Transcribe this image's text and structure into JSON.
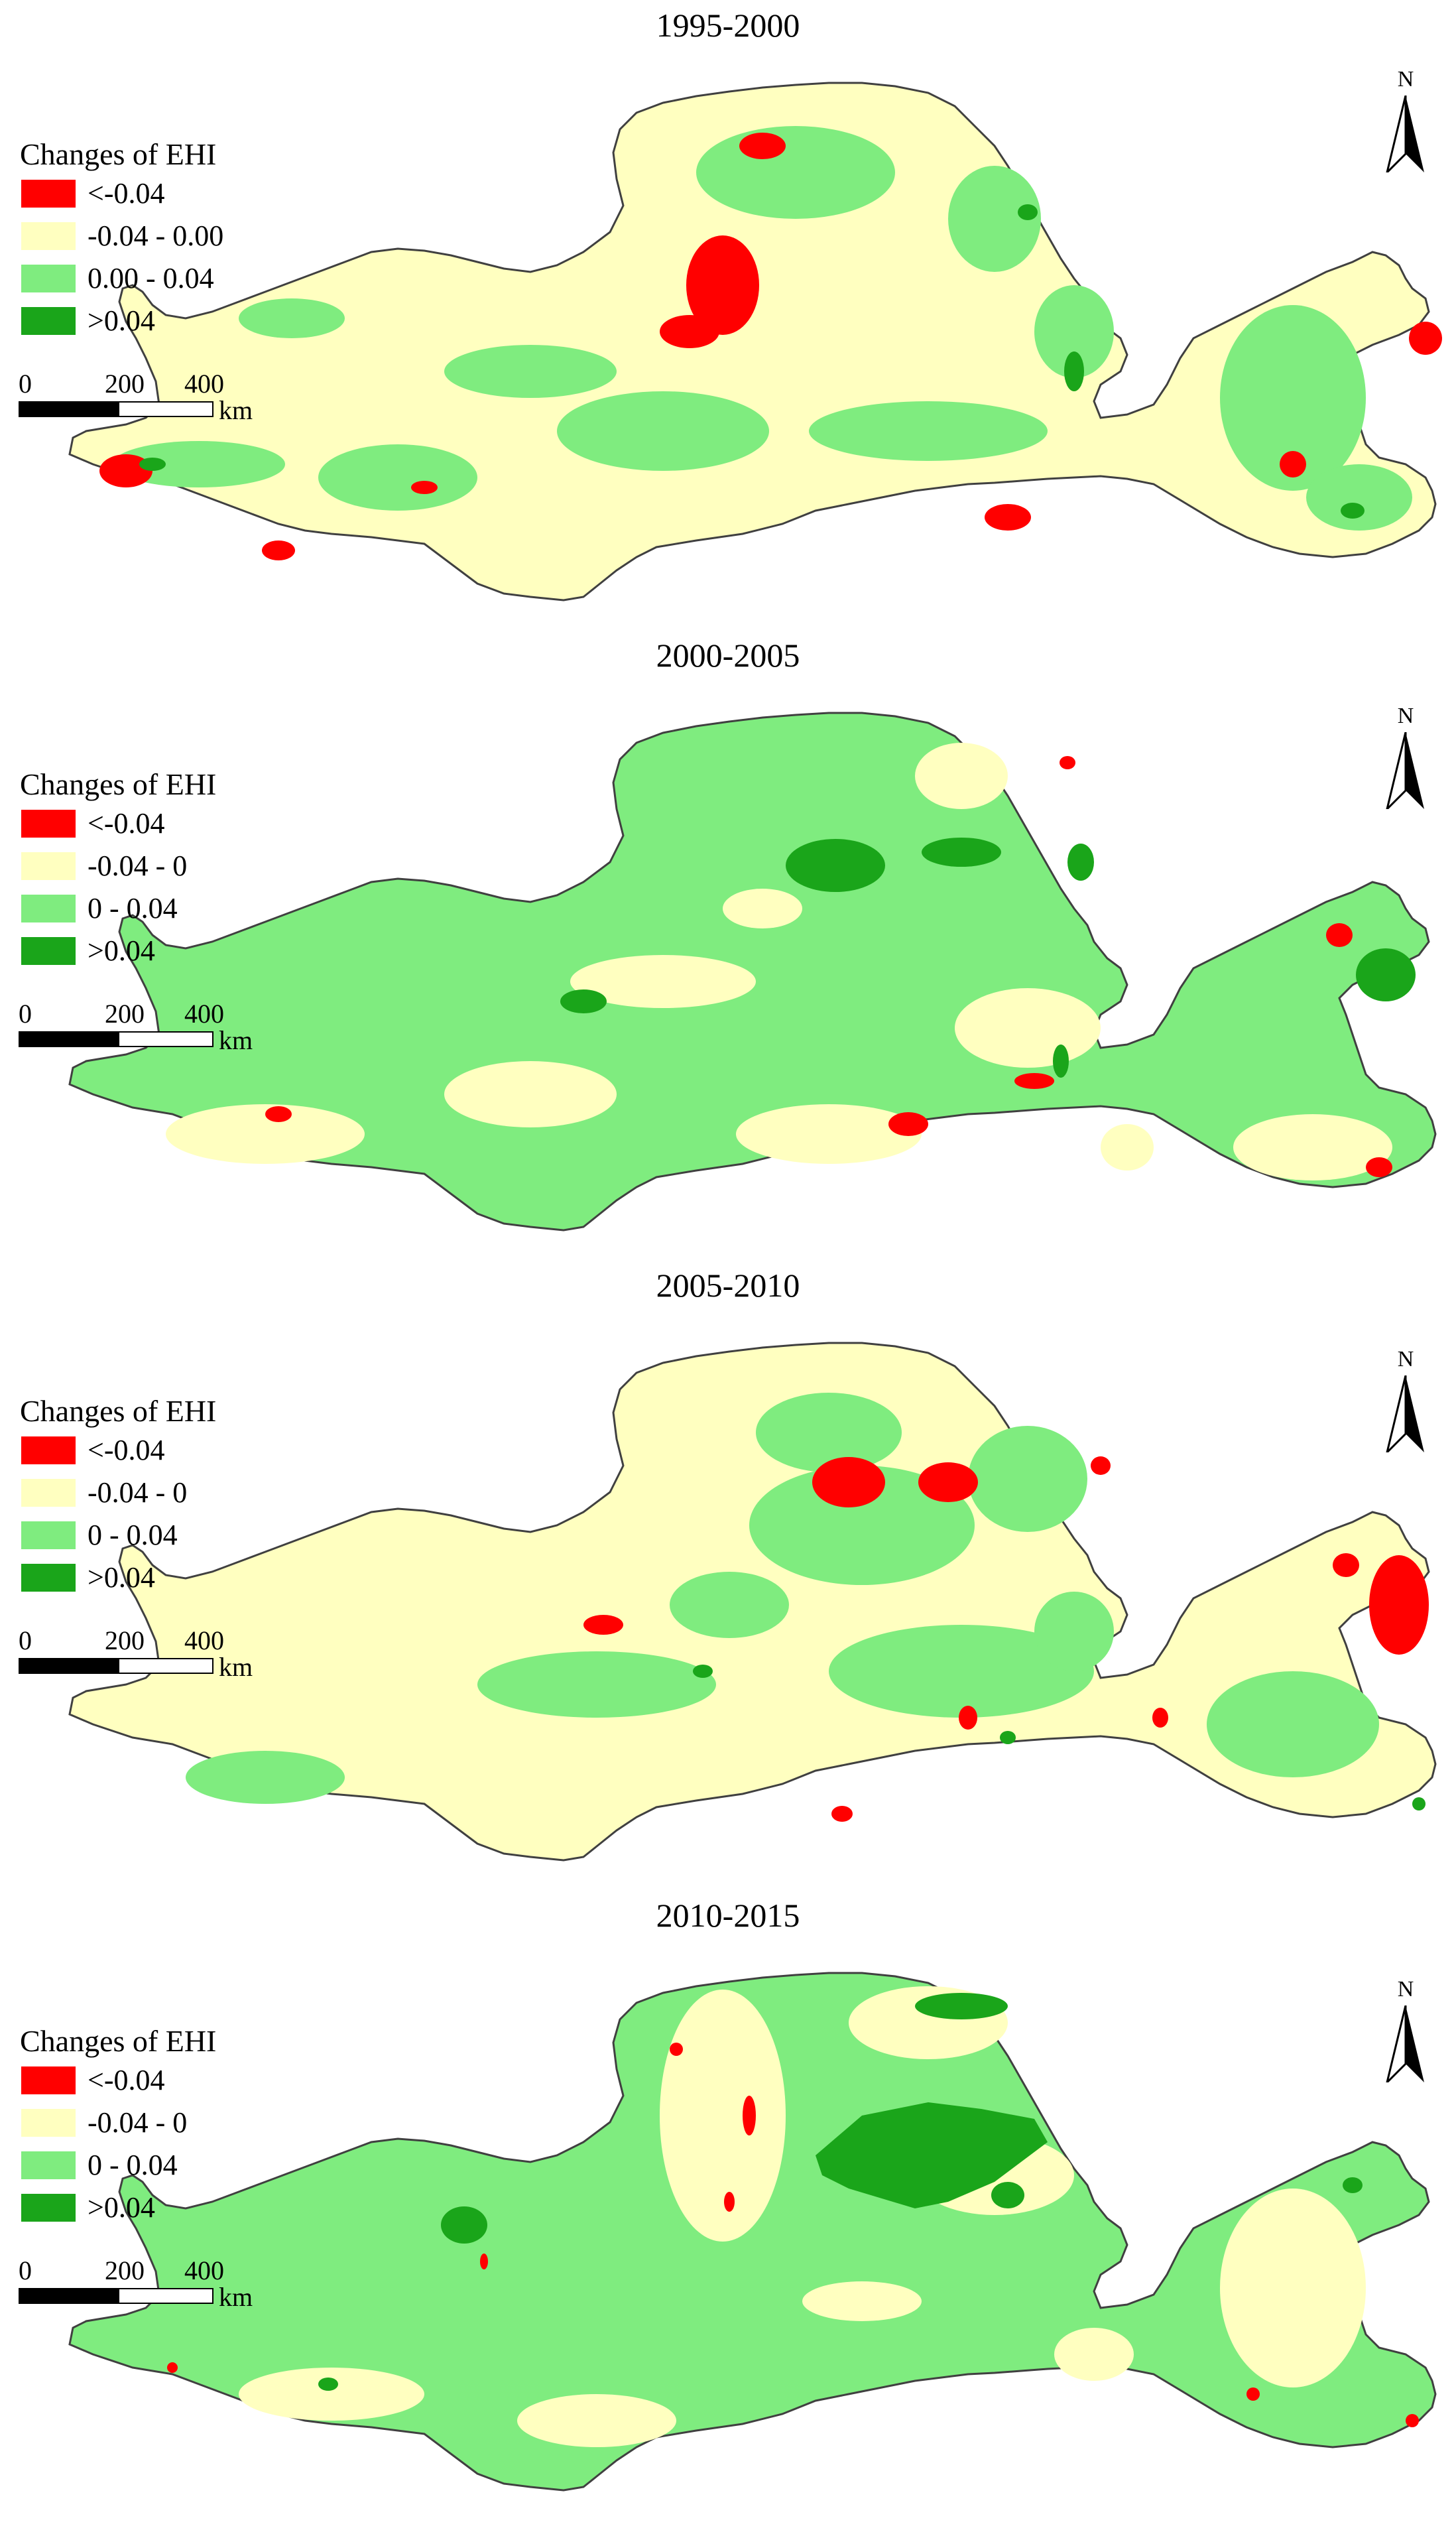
{
  "map": {
    "legend_title": "Changes of EHI",
    "colors": {
      "strong_decrease": "#ff0000",
      "slight_decrease": "#ffffc0",
      "slight_increase": "#7fec7f",
      "strong_increase": "#1aa51a",
      "boundary": "#404040"
    },
    "scale": {
      "ticks": [
        "0",
        "200",
        "400"
      ],
      "unit": "km"
    },
    "north_label": "N",
    "panels": [
      {
        "title": "1995-2000",
        "dominant": "slight_decrease",
        "legend": [
          "<-0.04",
          "-0.04 - 0.00",
          "0.00 - 0.04",
          ">0.04"
        ]
      },
      {
        "title": "2000-2005",
        "dominant": "slight_increase",
        "legend": [
          "<-0.04",
          "-0.04 - 0",
          "0 - 0.04",
          ">0.04"
        ]
      },
      {
        "title": "2005-2010",
        "dominant": "slight_decrease",
        "legend": [
          "<-0.04",
          "-0.04 - 0",
          "0 - 0.04",
          ">0.04"
        ]
      },
      {
        "title": "2010-2015",
        "dominant": "slight_increase",
        "legend": [
          "<-0.04",
          "-0.04 - 0",
          "0 - 0.04",
          ">0.04"
        ]
      }
    ]
  }
}
